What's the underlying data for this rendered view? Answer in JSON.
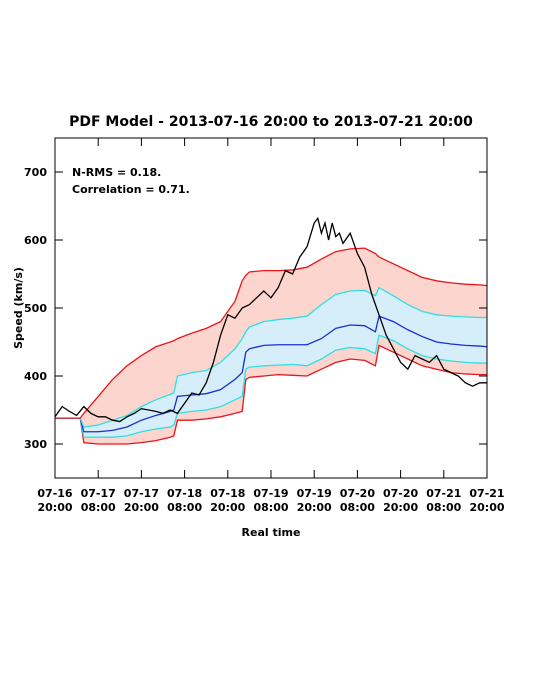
{
  "chart_data": {
    "type": "line",
    "title": "PDF Model - 2013-07-16 20:00 to 2013-07-21 20:00",
    "annotations": [
      "N-RMS = 0.18.",
      "Correlation = 0.71."
    ],
    "xlabel": "Real time",
    "ylabel": "Speed (km/s)",
    "xlim": [
      0,
      120
    ],
    "ylim": [
      250,
      750
    ],
    "xticks": [
      {
        "value": 0,
        "label": "07-16 20:00"
      },
      {
        "value": 12,
        "label": "07-17 08:00"
      },
      {
        "value": 24,
        "label": "07-17 20:00"
      },
      {
        "value": 36,
        "label": "07-18 08:00"
      },
      {
        "value": 48,
        "label": "07-18 20:00"
      },
      {
        "value": 60,
        "label": "07-19 08:00"
      },
      {
        "value": 72,
        "label": "07-19 20:00"
      },
      {
        "value": 84,
        "label": "07-20 08:00"
      },
      {
        "value": 96,
        "label": "07-20 20:00"
      },
      {
        "value": 108,
        "label": "07-21 08:00"
      },
      {
        "value": 120,
        "label": "07-21 20:00"
      }
    ],
    "yticks": [
      300,
      400,
      500,
      600,
      700
    ],
    "x": [
      0,
      4,
      7,
      8,
      12,
      16,
      20,
      24,
      28,
      32,
      33,
      34,
      38,
      42,
      46,
      50,
      52,
      53,
      54,
      58,
      62,
      66,
      70,
      74,
      78,
      82,
      86,
      89,
      90,
      94,
      98,
      102,
      106,
      110,
      114,
      118,
      120
    ],
    "fill_between": [
      {
        "series": [
          0,
          4
        ],
        "color": "#fdd5cf"
      },
      {
        "series": [
          1,
          3
        ],
        "color": "#d6eefa"
      }
    ],
    "series": [
      {
        "color": "#e8161b",
        "values": [
          338,
          338,
          338,
          302,
          300,
          300,
          300,
          302,
          305,
          310,
          312,
          335,
          335,
          337,
          340,
          345,
          348,
          395,
          398,
          400,
          402,
          401,
          400,
          410,
          420,
          425,
          423,
          415,
          445,
          435,
          425,
          415,
          410,
          405,
          403,
          402,
          402
        ]
      },
      {
        "color": "#2fe0e0",
        "values": [
          338,
          338,
          338,
          310,
          310,
          310,
          312,
          318,
          322,
          325,
          328,
          345,
          348,
          350,
          355,
          365,
          370,
          410,
          413,
          415,
          416,
          417,
          415,
          425,
          438,
          442,
          440,
          433,
          460,
          452,
          440,
          430,
          425,
          422,
          420,
          419,
          419
        ]
      },
      {
        "color": "#1a2fd0",
        "values": [
          338,
          338,
          338,
          318,
          318,
          320,
          325,
          335,
          342,
          348,
          350,
          370,
          372,
          374,
          380,
          395,
          405,
          435,
          440,
          445,
          446,
          446,
          446,
          455,
          470,
          475,
          474,
          465,
          488,
          480,
          468,
          458,
          450,
          447,
          445,
          444,
          443
        ]
      },
      {
        "color": "#2fe0e0",
        "values": [
          338,
          338,
          338,
          325,
          328,
          335,
          342,
          355,
          365,
          373,
          375,
          400,
          405,
          408,
          420,
          440,
          455,
          465,
          472,
          480,
          483,
          485,
          488,
          505,
          520,
          525,
          526,
          518,
          530,
          518,
          505,
          495,
          490,
          488,
          487,
          486,
          486
        ]
      },
      {
        "color": "#e8161b",
        "values": [
          338,
          338,
          338,
          345,
          370,
          395,
          415,
          430,
          443,
          450,
          452,
          455,
          463,
          470,
          480,
          510,
          540,
          548,
          553,
          555,
          555,
          556,
          560,
          572,
          583,
          587,
          588,
          580,
          575,
          565,
          555,
          545,
          540,
          537,
          535,
          534,
          533
        ]
      },
      {
        "color": "#000000",
        "x": [
          0,
          2,
          4,
          6,
          8,
          10,
          12,
          14,
          16,
          18,
          20,
          22,
          24,
          26,
          28,
          30,
          32,
          34,
          36,
          38,
          40,
          42,
          44,
          46,
          48,
          50,
          52,
          54,
          56,
          58,
          60,
          62,
          64,
          66,
          68,
          70,
          72,
          73,
          74,
          75,
          76,
          77,
          78,
          79,
          80,
          82,
          84,
          86,
          88,
          90,
          92,
          94,
          96,
          98,
          100,
          102,
          104,
          106,
          108,
          110,
          112,
          114,
          116,
          118,
          120
        ],
        "values": [
          340,
          355,
          348,
          342,
          355,
          345,
          340,
          340,
          335,
          333,
          340,
          345,
          352,
          350,
          348,
          345,
          350,
          345,
          360,
          375,
          372,
          390,
          420,
          460,
          490,
          485,
          500,
          505,
          515,
          525,
          515,
          530,
          555,
          550,
          575,
          590,
          625,
          632,
          610,
          625,
          600,
          625,
          605,
          610,
          595,
          610,
          580,
          560,
          520,
          490,
          460,
          440,
          420,
          410,
          430,
          425,
          420,
          430,
          410,
          405,
          400,
          390,
          385,
          390,
          390
        ]
      }
    ]
  }
}
